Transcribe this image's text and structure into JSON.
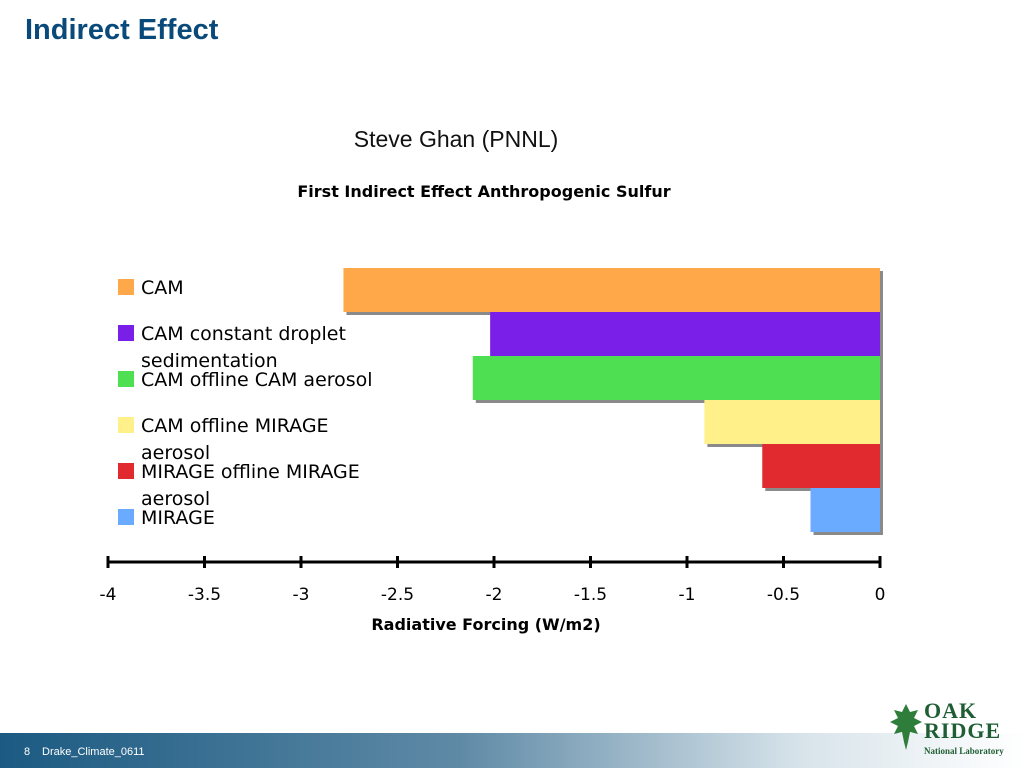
{
  "slide": {
    "title": "Indirect Effect",
    "subtitle": "Steve Ghan (PNNL)",
    "footer_number": "8",
    "footer_text": "Drake_Climate_0611"
  },
  "logo": {
    "line1": "OAK",
    "line2": "RIDGE",
    "line3": "National Laboratory"
  },
  "chart_data": {
    "type": "bar",
    "orientation": "horizontal",
    "title": "First Indirect Effect Anthropogenic Sulfur",
    "xlabel": "Radiative Forcing (W/m2)",
    "ylabel": "",
    "xlim": [
      -4,
      0
    ],
    "xticks": [
      -4,
      -3.5,
      -3,
      -2.5,
      -2,
      -1.5,
      -1,
      -0.5,
      0
    ],
    "xtick_labels": [
      "-4",
      "-3.5",
      "-3",
      "-2.5",
      "-2",
      "-1.5",
      "-1",
      "-0.5",
      "0"
    ],
    "grid": false,
    "legend": "left",
    "series": [
      {
        "name": "CAM",
        "value": -2.78,
        "color": "#ffa84a"
      },
      {
        "name": "CAM constant droplet sedimentation",
        "value": -2.02,
        "color": "#7a1fe8"
      },
      {
        "name": "CAM offline CAM aerosol",
        "value": -2.11,
        "color": "#4ee052"
      },
      {
        "name": "CAM offline MIRAGE aerosol",
        "value": -0.91,
        "color": "#fff08a"
      },
      {
        "name": "MIRAGE offline MIRAGE aerosol",
        "value": -0.61,
        "color": "#e02a30"
      },
      {
        "name": "MIRAGE",
        "value": -0.36,
        "color": "#6aaaff"
      }
    ]
  }
}
